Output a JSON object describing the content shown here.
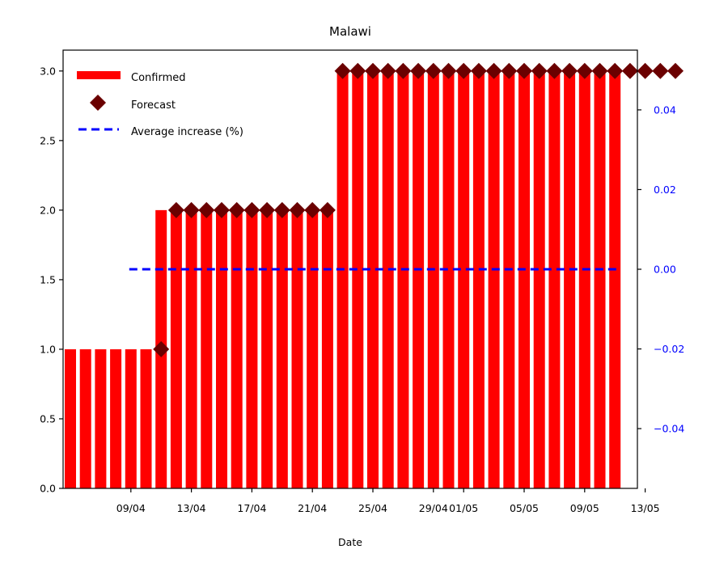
{
  "chart_data": {
    "type": "bar",
    "title": "Malawi",
    "xlabel": "Date",
    "ylabel": "",
    "ylim": [
      0,
      3.15
    ],
    "y_ticks": [
      "0.0",
      "0.5",
      "1.0",
      "1.5",
      "2.0",
      "2.5",
      "3.0"
    ],
    "y2lim": [
      -0.055,
      0.055
    ],
    "y2_ticks": [
      "−0.04",
      "−0.02",
      "0.00",
      "0.02",
      "0.04"
    ],
    "x_tick_labels": [
      "09/04",
      "13/04",
      "17/04",
      "21/04",
      "25/04",
      "29/04",
      "01/05",
      "05/05",
      "09/05",
      "13/05"
    ],
    "legend_position": "top-left",
    "grid": false,
    "colors": {
      "confirmed": "#ff0000",
      "forecast": "#6b0000",
      "average": "#0000ff",
      "right_axis": "#0000ff"
    },
    "confirmed": {
      "name": "Confirmed",
      "dates": [
        "05/04",
        "06/04",
        "07/04",
        "08/04",
        "09/04",
        "10/04",
        "11/04",
        "12/04",
        "13/04",
        "14/04",
        "15/04",
        "16/04",
        "17/04",
        "18/04",
        "19/04",
        "20/04",
        "21/04",
        "22/04",
        "23/04",
        "24/04",
        "25/04",
        "26/04",
        "27/04",
        "28/04",
        "29/04",
        "30/04",
        "01/05",
        "02/05",
        "03/05",
        "04/05",
        "05/05",
        "06/05",
        "07/05",
        "08/05",
        "09/05",
        "10/05",
        "11/05"
      ],
      "values": [
        1,
        1,
        1,
        1,
        1,
        1,
        2,
        2,
        2,
        2,
        2,
        2,
        2,
        2,
        2,
        2,
        2,
        2,
        3,
        3,
        3,
        3,
        3,
        3,
        3,
        3,
        3,
        3,
        3,
        3,
        3,
        3,
        3,
        3,
        3,
        3,
        3
      ]
    },
    "forecast": {
      "name": "Forecast",
      "dates": [
        "11/04",
        "12/04",
        "13/04",
        "14/04",
        "15/04",
        "16/04",
        "17/04",
        "18/04",
        "19/04",
        "20/04",
        "21/04",
        "22/04",
        "23/04",
        "24/04",
        "25/04",
        "26/04",
        "27/04",
        "28/04",
        "29/04",
        "30/04",
        "01/05",
        "02/05",
        "03/05",
        "04/05",
        "05/05",
        "06/05",
        "07/05",
        "08/05",
        "09/05",
        "10/05",
        "11/05",
        "12/05",
        "13/05",
        "14/05",
        "15/05"
      ],
      "values": [
        1,
        2,
        2,
        2,
        2,
        2,
        2,
        2,
        2,
        2,
        2,
        2,
        3,
        3,
        3,
        3,
        3,
        3,
        3,
        3,
        3,
        3,
        3,
        3,
        3,
        3,
        3,
        3,
        3,
        3,
        3,
        3,
        3,
        3,
        3
      ]
    },
    "average_increase": {
      "name": "Average increase (%)",
      "axis": "right",
      "dates": [
        "09/04",
        "11/05"
      ],
      "values": [
        0,
        0
      ]
    }
  }
}
